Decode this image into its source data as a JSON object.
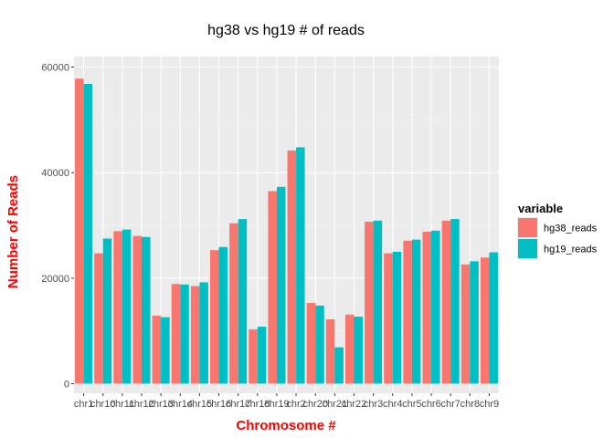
{
  "chart_data": {
    "type": "bar",
    "title": "hg38 vs hg19 # of reads",
    "xlabel": "Chromosome #",
    "ylabel": "Number of Reads",
    "ylim": [
      0,
      60000
    ],
    "yticks": [
      0,
      20000,
      40000,
      60000
    ],
    "ytick_labels": [
      "0",
      "20000",
      "40000",
      "60000"
    ],
    "categories": [
      "chr1",
      "chr10",
      "chr11",
      "chr12",
      "chr13",
      "chr14",
      "chr15",
      "chr16",
      "chr17",
      "chr18",
      "chr19",
      "chr2",
      "chr20",
      "chr21",
      "chr22",
      "chr3",
      "chr4",
      "chr5",
      "chr6",
      "chr7",
      "chr8",
      "chr9"
    ],
    "series": [
      {
        "name": "hg38_reads",
        "color": "#F8766D",
        "values": [
          57800,
          24700,
          28900,
          28000,
          12900,
          18900,
          18500,
          25300,
          30400,
          10300,
          36500,
          44200,
          15300,
          12200,
          13100,
          30700,
          24700,
          27100,
          28800,
          30900,
          22600,
          23900
        ]
      },
      {
        "name": "hg19_reads",
        "color": "#00BFC4",
        "values": [
          56800,
          27500,
          29200,
          27800,
          12600,
          18800,
          19200,
          25900,
          31200,
          10800,
          37300,
          44800,
          14800,
          6900,
          12700,
          30900,
          25000,
          27300,
          29000,
          31200,
          23200,
          24900
        ]
      }
    ],
    "legend": {
      "title": "variable",
      "position": "right"
    },
    "grid": true
  }
}
